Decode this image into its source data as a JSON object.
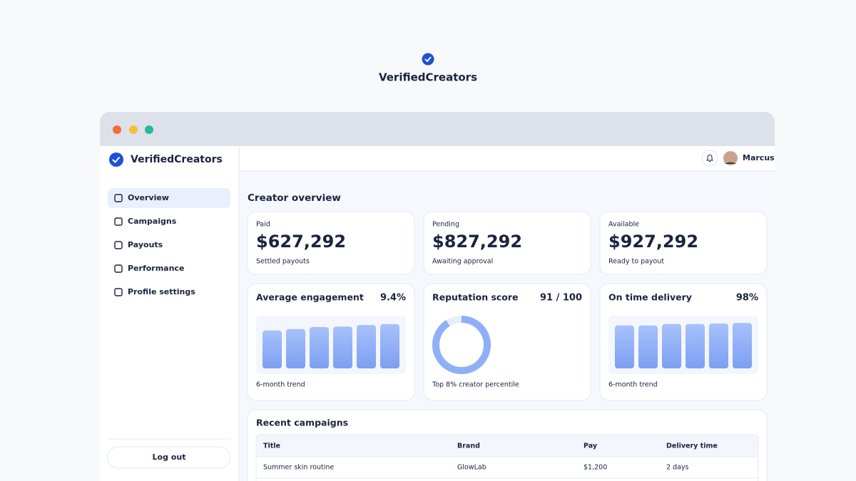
{
  "header": {
    "title": "VerifiedCreators"
  },
  "sidebar": {
    "brand": "VerifiedCreators",
    "nav": [
      "Overview",
      "Campaigns",
      "Payouts",
      "Performance",
      "Profile settings"
    ],
    "active": 0,
    "logout": "Log out"
  },
  "topbar": {
    "user": "Marcus"
  },
  "main": {
    "title": "Creator overview",
    "balances": [
      {
        "label": "Paid",
        "amount": "$627,292",
        "note": "Settled payouts",
        "color": "#5b6477"
      },
      {
        "label": "Pending",
        "amount": "$827,292",
        "note": "Awaiting approval",
        "color": "#c58a12"
      },
      {
        "label": "Available",
        "amount": "$927,292",
        "note": "Ready to payout",
        "color": "#2f9a4a"
      }
    ],
    "metrics": [
      {
        "title": "Average engagement",
        "value": "9.4%",
        "type": "bar",
        "values": [
          76,
          79,
          83,
          84,
          87,
          89
        ],
        "ylim": [
          0,
          100
        ],
        "note": "6-month trend"
      },
      {
        "title": "Reputation score",
        "value": {
          "value": 91,
          "max": 100,
          "label": "91 / 100"
        },
        "type": "donut",
        "note": "Top 8% creator percentile"
      },
      {
        "title": "On time delivery",
        "value": "98%",
        "type": "bar",
        "values": [
          86,
          86,
          89,
          89,
          90,
          91
        ],
        "ylim": [
          0,
          100
        ],
        "note": "6-month trend"
      }
    ],
    "campaigns": {
      "title": "Recent campaigns",
      "columns": [
        "Title",
        "Brand",
        "Pay",
        "Delivery time"
      ],
      "rows": [
        [
          "Summer skin routine",
          "GlowLab",
          "$1,200",
          "2 days"
        ]
      ]
    }
  }
}
